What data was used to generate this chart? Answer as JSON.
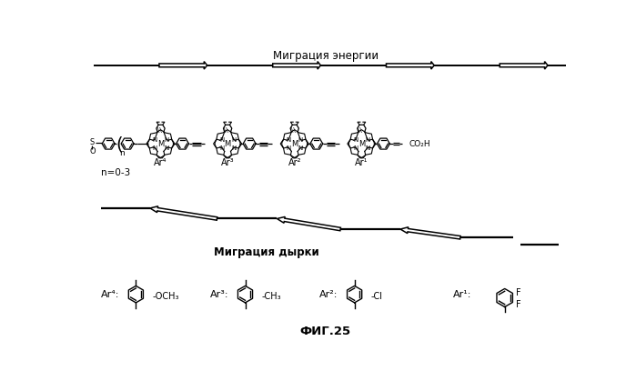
{
  "title": "ФИГ.25",
  "migration_energy_text": "Миграция энергии",
  "migration_hole_text": "Миграция дырки",
  "bg_color": "#ffffff",
  "n_label": "n=0-3",
  "co2h_label": "CO₂H",
  "ar_labels": [
    "Ar⁴:",
    "Ar³:",
    "Ar²:",
    "Ar¹:"
  ],
  "ar_subs": [
    "-OCH₃",
    "-CH₃",
    "-Cl",
    ""
  ],
  "ar1_f_labels": [
    "F",
    "F"
  ]
}
